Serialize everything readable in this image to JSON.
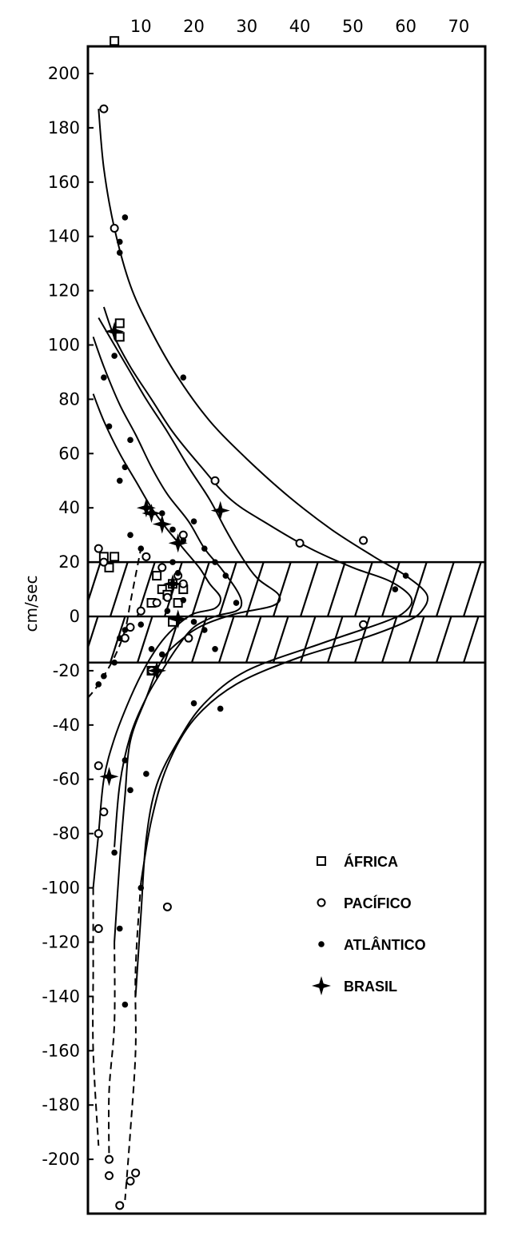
{
  "chart_data": {
    "type": "scatter",
    "title": "",
    "xlabel": "",
    "ylabel": "cm/sec",
    "xlim": [
      0,
      75
    ],
    "ylim": [
      -220,
      210
    ],
    "x_ticks": [
      "10",
      "20",
      "30",
      "40",
      "50",
      "60",
      "70"
    ],
    "y_ticks": [
      "200",
      "180",
      "160",
      "140",
      "120",
      "100",
      "80",
      "60",
      "40",
      "20",
      "0",
      "-20",
      "-40",
      "-60",
      "-80",
      "-100",
      "-120",
      "-140",
      "-160",
      "-180",
      "-200"
    ],
    "bands": [
      {
        "y_from": 0,
        "y_to": 20,
        "hatched": true
      },
      {
        "y_from": -17,
        "y_to": 0,
        "hatched": true
      }
    ],
    "legend_position": "lower-right",
    "series": [
      {
        "name": "ÁFRICA",
        "marker": "square",
        "points": [
          [
            5,
            212
          ],
          [
            6,
            108
          ],
          [
            6,
            103
          ],
          [
            3,
            22
          ],
          [
            5,
            22
          ],
          [
            4,
            18
          ],
          [
            12,
            5
          ],
          [
            13,
            15
          ],
          [
            14,
            10
          ],
          [
            15,
            8
          ],
          [
            16,
            12
          ],
          [
            12,
            -20
          ],
          [
            16,
            -2
          ],
          [
            17,
            5
          ],
          [
            18,
            10
          ]
        ]
      },
      {
        "name": "PACÍFICO",
        "marker": "open-circle",
        "points": [
          [
            3,
            187
          ],
          [
            5,
            143
          ],
          [
            24,
            50
          ],
          [
            40,
            27
          ],
          [
            52,
            28
          ],
          [
            52,
            -3
          ],
          [
            18,
            30
          ],
          [
            18,
            12
          ],
          [
            19,
            -8
          ],
          [
            2,
            25
          ],
          [
            3,
            20
          ],
          [
            7,
            -8
          ],
          [
            8,
            -4
          ],
          [
            12,
            -20
          ],
          [
            13,
            5
          ],
          [
            2,
            -55
          ],
          [
            3,
            -72
          ],
          [
            2,
            -80
          ],
          [
            2,
            -115
          ],
          [
            15,
            -107
          ],
          [
            4,
            -200
          ],
          [
            4,
            -206
          ],
          [
            8,
            -208
          ],
          [
            9,
            -205
          ],
          [
            6,
            -217
          ],
          [
            10,
            2
          ],
          [
            11,
            22
          ],
          [
            14,
            18
          ],
          [
            17,
            15
          ],
          [
            15,
            7
          ]
        ]
      },
      {
        "name": "ATLÂNTICO",
        "marker": "filled-circle",
        "points": [
          [
            7,
            147
          ],
          [
            6,
            138
          ],
          [
            6,
            134
          ],
          [
            5,
            96
          ],
          [
            3,
            88
          ],
          [
            4,
            70
          ],
          [
            7,
            55
          ],
          [
            8,
            65
          ],
          [
            18,
            88
          ],
          [
            6,
            50
          ],
          [
            8,
            30
          ],
          [
            10,
            25
          ],
          [
            12,
            38
          ],
          [
            14,
            38
          ],
          [
            16,
            32
          ],
          [
            18,
            28
          ],
          [
            20,
            35
          ],
          [
            22,
            25
          ],
          [
            24,
            20
          ],
          [
            26,
            15
          ],
          [
            28,
            5
          ],
          [
            2,
            -25
          ],
          [
            3,
            -22
          ],
          [
            5,
            -17
          ],
          [
            6,
            -8
          ],
          [
            7,
            -5
          ],
          [
            10,
            -3
          ],
          [
            12,
            -12
          ],
          [
            14,
            -14
          ],
          [
            20,
            -2
          ],
          [
            22,
            -5
          ],
          [
            24,
            -12
          ],
          [
            20,
            -32
          ],
          [
            25,
            -34
          ],
          [
            60,
            15
          ],
          [
            58,
            10
          ],
          [
            11,
            -58
          ],
          [
            7,
            -53
          ],
          [
            5,
            -87
          ],
          [
            8,
            -64
          ],
          [
            10,
            -100
          ],
          [
            6,
            -115
          ],
          [
            7,
            -143
          ],
          [
            13,
            -20
          ],
          [
            15,
            2
          ],
          [
            16,
            20
          ],
          [
            17,
            16
          ],
          [
            18,
            6
          ]
        ]
      },
      {
        "name": "BRASIL",
        "marker": "star",
        "points": [
          [
            5,
            105
          ],
          [
            11,
            40
          ],
          [
            12,
            38
          ],
          [
            14,
            34
          ],
          [
            17,
            27
          ],
          [
            25,
            39
          ],
          [
            16,
            12
          ],
          [
            17,
            -1
          ],
          [
            13,
            -20
          ],
          [
            4,
            -59
          ]
        ]
      }
    ],
    "curves": [
      {
        "style": "solid",
        "points": [
          [
            2,
            187
          ],
          [
            3,
            165
          ],
          [
            5,
            143
          ],
          [
            8,
            122
          ],
          [
            12,
            105
          ],
          [
            17,
            88
          ],
          [
            23,
            72
          ],
          [
            30,
            58
          ],
          [
            38,
            44
          ],
          [
            46,
            32
          ],
          [
            54,
            22
          ],
          [
            60,
            15
          ],
          [
            64,
            8
          ],
          [
            63,
            2
          ],
          [
            60,
            -2
          ],
          [
            52,
            -8
          ],
          [
            40,
            -15
          ],
          [
            28,
            -25
          ],
          [
            20,
            -38
          ],
          [
            15,
            -55
          ],
          [
            12,
            -75
          ],
          [
            10,
            -98
          ]
        ]
      },
      {
        "style": "solid",
        "points": [
          [
            3,
            114
          ],
          [
            5,
            103
          ],
          [
            8,
            92
          ],
          [
            12,
            80
          ],
          [
            16,
            68
          ],
          [
            21,
            56
          ],
          [
            27,
            43
          ],
          [
            34,
            34
          ],
          [
            42,
            25
          ],
          [
            50,
            18
          ],
          [
            57,
            13
          ],
          [
            61,
            7
          ],
          [
            60,
            2
          ],
          [
            56,
            -2
          ],
          [
            44,
            -10
          ],
          [
            30,
            -20
          ],
          [
            22,
            -32
          ],
          [
            17,
            -46
          ],
          [
            13,
            -62
          ],
          [
            11,
            -82
          ],
          [
            10,
            -110
          ],
          [
            9,
            -140
          ]
        ]
      },
      {
        "style": "solid",
        "points": [
          [
            2,
            110
          ],
          [
            5,
            100
          ],
          [
            8,
            90
          ],
          [
            11,
            80
          ],
          [
            15,
            68
          ],
          [
            19,
            55
          ],
          [
            23,
            43
          ],
          [
            26,
            32
          ],
          [
            29,
            22
          ],
          [
            32,
            14
          ],
          [
            36,
            8
          ],
          [
            35,
            4
          ],
          [
            28,
            1
          ],
          [
            22,
            -3
          ],
          [
            18,
            -8
          ],
          [
            14,
            -16
          ],
          [
            11,
            -30
          ],
          [
            8,
            -46
          ],
          [
            7,
            -66
          ],
          [
            6,
            -90
          ],
          [
            5,
            -120
          ]
        ]
      },
      {
        "style": "solid",
        "points": [
          [
            1,
            103
          ],
          [
            3,
            92
          ],
          [
            6,
            78
          ],
          [
            9,
            67
          ],
          [
            12,
            55
          ],
          [
            15,
            45
          ],
          [
            19,
            35
          ],
          [
            22,
            25
          ],
          [
            25,
            18
          ],
          [
            28,
            10
          ],
          [
            29,
            5
          ],
          [
            28,
            2
          ],
          [
            24,
            0
          ],
          [
            20,
            -4
          ],
          [
            17,
            -11
          ],
          [
            14,
            -20
          ],
          [
            11,
            -30
          ],
          [
            8,
            -44
          ],
          [
            6,
            -62
          ],
          [
            5,
            -85
          ]
        ]
      },
      {
        "style": "solid",
        "points": [
          [
            1,
            82
          ],
          [
            3,
            72
          ],
          [
            6,
            60
          ],
          [
            9,
            50
          ],
          [
            12,
            40
          ],
          [
            15,
            32
          ],
          [
            18,
            25
          ],
          [
            21,
            18
          ],
          [
            23,
            12
          ],
          [
            25,
            7
          ],
          [
            24,
            3
          ],
          [
            20,
            1
          ],
          [
            17,
            -3
          ],
          [
            14,
            -9
          ],
          [
            11,
            -18
          ],
          [
            8,
            -30
          ],
          [
            5,
            -45
          ],
          [
            3,
            -60
          ],
          [
            2,
            -80
          ],
          [
            1,
            -100
          ]
        ]
      },
      {
        "style": "dashed",
        "points": [
          [
            10,
            -98
          ],
          [
            9,
            -130
          ],
          [
            9,
            -160
          ],
          [
            8,
            -190
          ],
          [
            7,
            -215
          ]
        ]
      },
      {
        "style": "dashed",
        "points": [
          [
            5,
            -120
          ],
          [
            5,
            -150
          ],
          [
            4,
            -175
          ],
          [
            4,
            -200
          ]
        ]
      },
      {
        "style": "dashed",
        "points": [
          [
            1,
            -100
          ],
          [
            1,
            -130
          ],
          [
            1,
            -160
          ],
          [
            2,
            -195
          ]
        ]
      },
      {
        "style": "dashed",
        "points": [
          [
            0,
            -30
          ],
          [
            2,
            -25
          ],
          [
            5,
            -15
          ],
          [
            7,
            -5
          ],
          [
            8,
            5
          ],
          [
            9,
            15
          ],
          [
            10,
            25
          ]
        ]
      }
    ]
  }
}
